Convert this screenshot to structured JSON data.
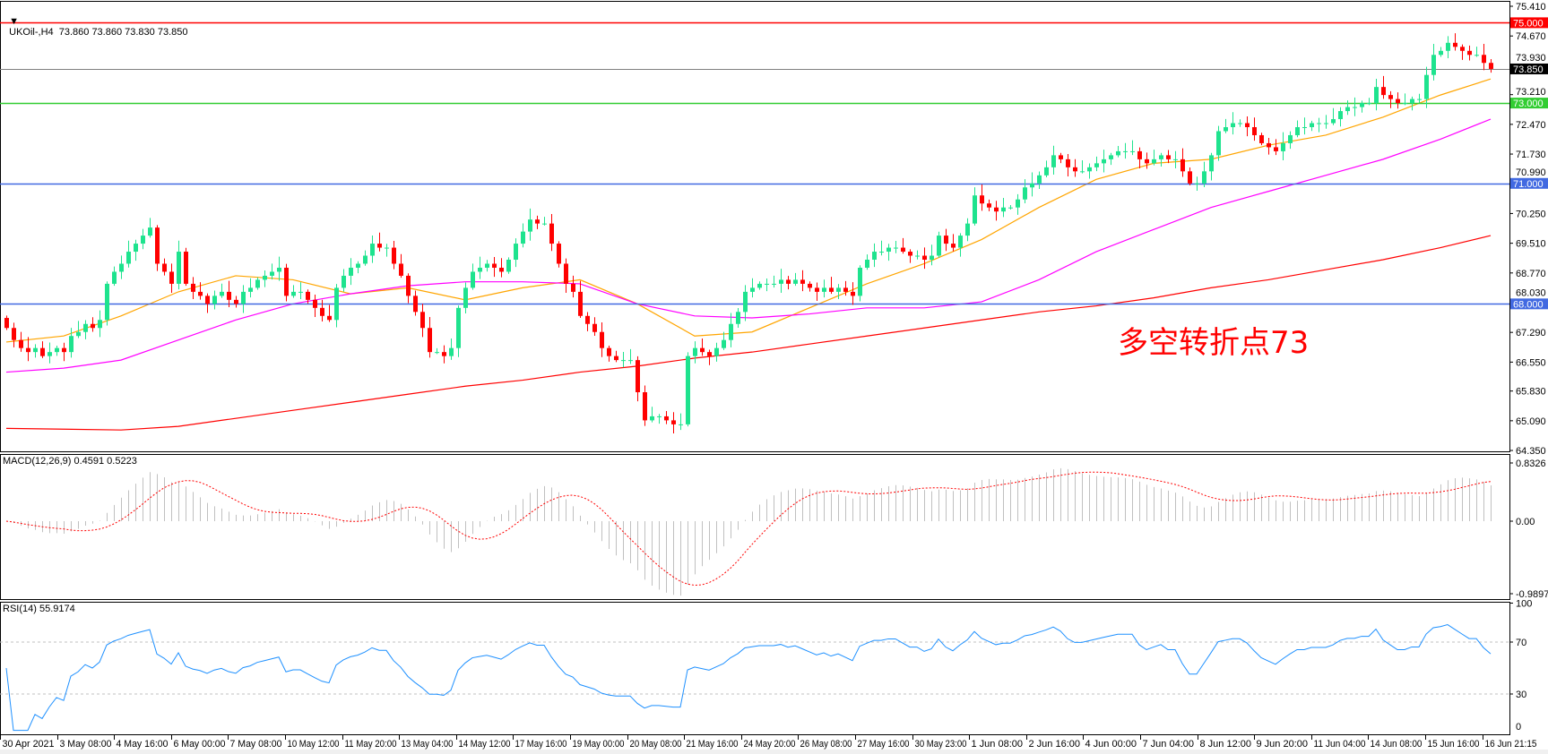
{
  "header": {
    "symbol_line": "UKOil-,H4  73.860 73.860 73.830 73.850",
    "macd_label": "MACD(12,26,9) 0.4591 0.5223",
    "rsi_label": "RSI(14) 55.9174"
  },
  "annotation": "多空转折点73",
  "colors": {
    "bull": "#1ee38e",
    "bear": "#ff0000",
    "ma_fast": "#ffa500",
    "ma_mid": "#ff00ff",
    "ma_slow": "#ff0000",
    "macd_hist": "#c0c0c0",
    "macd_signal": "#ff0000",
    "rsi": "#1e90ff"
  },
  "chart_data": [
    {
      "type": "candlestick",
      "symbol": "UKOil-",
      "timeframe": "H4",
      "ohlc_current": {
        "open": 73.86,
        "high": 73.86,
        "low": 73.83,
        "close": 73.85
      },
      "ylim": [
        64.35,
        75.41
      ],
      "y_ticks": [
        "75.410",
        "74.670",
        "73.930",
        "73.210",
        "72.470",
        "71.730",
        "70.990",
        "70.250",
        "69.510",
        "68.770",
        "68.030",
        "67.290",
        "66.550",
        "65.830",
        "65.090",
        "64.350"
      ],
      "x_ticks": [
        "30 Apr 2021",
        "3 May 08:00",
        "4 May 16:00",
        "6 May 00:00",
        "7 May 08:00",
        "10 May 12:00",
        "11 May 20:00",
        "13 May 04:00",
        "14 May 12:00",
        "17 May 16:00",
        "19 May 00:00",
        "20 May 08:00",
        "21 May 16:00",
        "24 May 20:00",
        "26 May 08:00",
        "27 May 16:00",
        "30 May 23:00",
        "1 Jun 08:00",
        "2 Jun 16:00",
        "4 Jun 00:00",
        "7 Jun 04:00",
        "8 Jun 12:00",
        "9 Jun 20:00",
        "11 Jun 04:00",
        "14 Jun 08:00",
        "15 Jun 16:00",
        "16 Jun 21:15"
      ],
      "closes": [
        67.4,
        67.1,
        66.9,
        66.8,
        66.9,
        66.7,
        66.8,
        66.9,
        66.8,
        67.2,
        67.3,
        67.5,
        67.4,
        67.6,
        68.5,
        68.8,
        69.0,
        69.3,
        69.5,
        69.7,
        69.9,
        69.0,
        68.8,
        68.5,
        69.3,
        68.5,
        68.3,
        68.2,
        68.0,
        68.2,
        68.3,
        68.1,
        68.0,
        68.3,
        68.4,
        68.6,
        68.7,
        68.8,
        68.9,
        68.2,
        68.3,
        68.3,
        68.1,
        67.9,
        67.7,
        67.6,
        68.4,
        68.7,
        68.9,
        69.0,
        69.2,
        69.5,
        69.4,
        69.4,
        69.0,
        68.7,
        68.2,
        67.8,
        67.4,
        66.8,
        66.8,
        66.7,
        66.9,
        67.9,
        68.4,
        68.8,
        68.9,
        69.0,
        68.9,
        68.8,
        69.1,
        69.5,
        69.8,
        70.1,
        70.0,
        70.0,
        69.5,
        69.0,
        68.5,
        68.3,
        67.7,
        67.5,
        67.3,
        66.9,
        66.7,
        66.6,
        66.6,
        66.6,
        65.8,
        65.1,
        65.2,
        65.2,
        65.1,
        65.0,
        65.0,
        66.7,
        66.9,
        66.8,
        66.7,
        66.9,
        67.1,
        67.5,
        67.8,
        68.3,
        68.4,
        68.5,
        68.5,
        68.5,
        68.6,
        68.5,
        68.6,
        68.5,
        68.4,
        68.3,
        68.4,
        68.3,
        68.4,
        68.3,
        68.2,
        68.9,
        69.1,
        69.3,
        69.3,
        69.4,
        69.4,
        69.3,
        69.2,
        69.2,
        69.1,
        69.2,
        69.7,
        69.5,
        69.4,
        69.7,
        70.0,
        70.7,
        70.5,
        70.4,
        70.3,
        70.4,
        70.4,
        70.6,
        70.9,
        71.0,
        71.2,
        71.4,
        71.7,
        71.6,
        71.4,
        71.3,
        71.3,
        71.4,
        71.5,
        71.6,
        71.7,
        71.8,
        71.8,
        71.8,
        71.6,
        71.5,
        71.6,
        71.7,
        71.6,
        71.6,
        71.3,
        71.0,
        71.0,
        71.3,
        71.7,
        72.3,
        72.4,
        72.5,
        72.5,
        72.4,
        72.2,
        72.0,
        71.9,
        71.8,
        72.0,
        72.2,
        72.4,
        72.4,
        72.5,
        72.5,
        72.5,
        72.6,
        72.8,
        72.9,
        72.9,
        73.0,
        73.0,
        73.4,
        73.2,
        73.1,
        73.0,
        73.0,
        73.1,
        73.1,
        73.7,
        74.2,
        74.3,
        74.5,
        74.4,
        74.3,
        74.2,
        74.2,
        74.0,
        73.85
      ],
      "moving_averages": [
        {
          "color": "ma_fast",
          "values": [
            67.05,
            67.2,
            67.7,
            68.3,
            68.7,
            68.6,
            68.25,
            68.4,
            68.1,
            68.4,
            68.6,
            68.0,
            67.2,
            67.3,
            67.9,
            68.5,
            69.0,
            69.6,
            70.4,
            71.1,
            71.5,
            71.6,
            71.95,
            72.2,
            72.65,
            73.2,
            73.6
          ]
        },
        {
          "color": "ma_mid",
          "values": [
            66.3,
            66.4,
            66.6,
            67.1,
            67.6,
            68.0,
            68.25,
            68.45,
            68.55,
            68.55,
            68.5,
            68.0,
            67.7,
            67.65,
            67.75,
            67.9,
            67.9,
            68.05,
            68.6,
            69.3,
            69.85,
            70.4,
            70.8,
            71.2,
            71.6,
            72.1,
            72.6
          ]
        },
        {
          "color": "ma_slow",
          "values": [
            64.9,
            64.88,
            64.86,
            64.95,
            65.15,
            65.35,
            65.55,
            65.75,
            65.95,
            66.1,
            66.3,
            66.45,
            66.65,
            66.8,
            67.0,
            67.2,
            67.4,
            67.6,
            67.8,
            67.95,
            68.15,
            68.4,
            68.6,
            68.85,
            69.1,
            69.4,
            69.7
          ]
        }
      ],
      "horizontal_lines": [
        {
          "label": "75.000",
          "value": 75.0,
          "color": "#ff0000",
          "text_color": "#ffffff"
        },
        {
          "label": "73.850",
          "value": 73.85,
          "color": "#808080",
          "box": "#000000",
          "text_color": "#ffffff"
        },
        {
          "label": "73.000",
          "value": 73.0,
          "color": "#32cd32",
          "text_color": "#ffffff"
        },
        {
          "label": "71.000",
          "value": 71.0,
          "color": "#4169e1",
          "text_color": "#ffffff"
        },
        {
          "label": "68.000",
          "value": 68.0,
          "color": "#4169e1",
          "text_color": "#ffffff"
        }
      ]
    },
    {
      "type": "bar",
      "indicator": "MACD(12,26,9)",
      "macd": 0.4591,
      "signal": 0.5223,
      "ylim": [
        -0.9897,
        0.8326
      ],
      "y_ticks": [
        "0.8326",
        "0.00",
        "-0.9897"
      ]
    },
    {
      "type": "line",
      "indicator": "RSI(14)",
      "value": 55.9174,
      "ylim": [
        0,
        100
      ],
      "levels": [
        70,
        30
      ],
      "y_ticks": [
        "100",
        "70",
        "30"
      ],
      "x_axis_end_label": "0"
    }
  ]
}
